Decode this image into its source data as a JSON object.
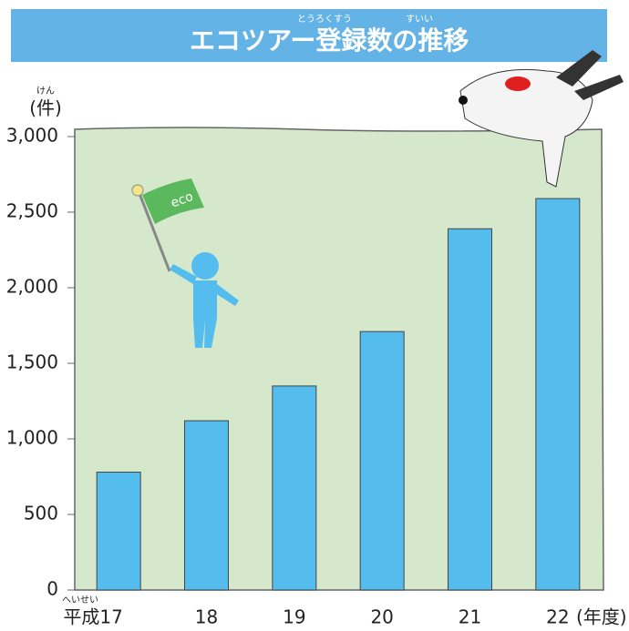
{
  "chart_data": {
    "type": "bar",
    "title": "エコツアー登録数の推移",
    "title_furigana": [
      "とうろくすう",
      "すいい"
    ],
    "y_label": "(件)",
    "y_label_furigana": "けん",
    "x_label": "(年度)",
    "categories": [
      "平成17",
      "18",
      "19",
      "20",
      "21",
      "22"
    ],
    "category_furigana": "へいせい",
    "values": [
      780,
      1120,
      1350,
      1710,
      2390,
      2590
    ],
    "color": "#55bdee",
    "ylim": [
      0,
      3000
    ],
    "yticks": [
      0,
      500,
      {
        "value": 1000,
        "label": "1,000"
      },
      {
        "value": 1500,
        "label": "1,500"
      },
      {
        "value": 2000,
        "label": "2,000"
      },
      {
        "value": 2500,
        "label": "2,500"
      },
      {
        "value": 3000,
        "label": "3,000"
      }
    ]
  }
}
